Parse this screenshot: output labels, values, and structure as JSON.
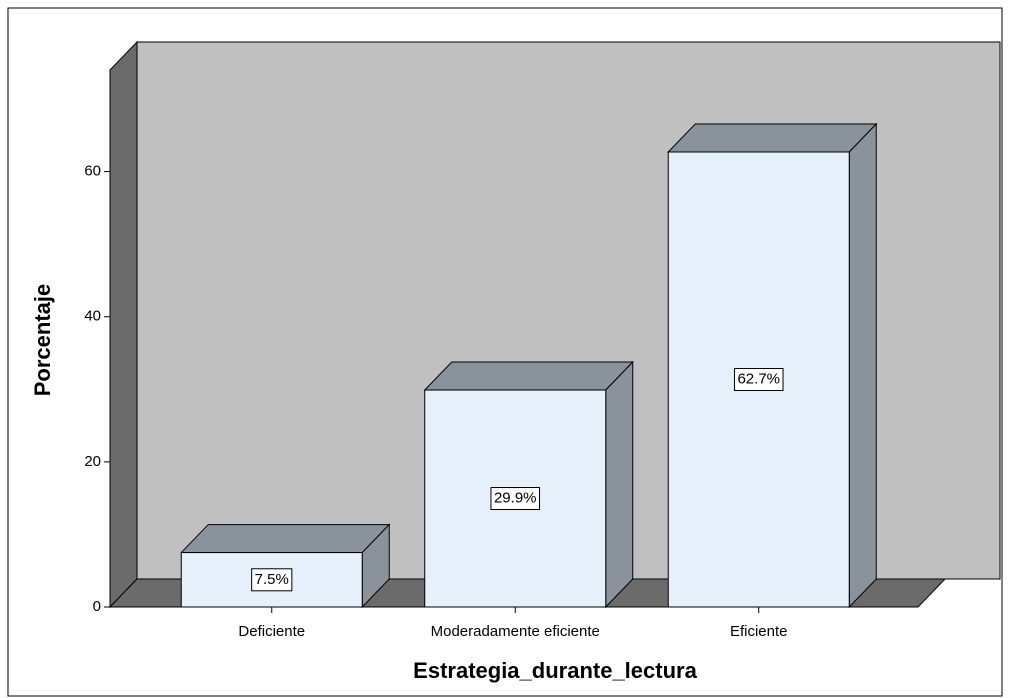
{
  "chart_data": {
    "type": "bar",
    "categories": [
      "Deficiente",
      "Moderadamente eficiente",
      "Eficiente"
    ],
    "values": [
      7.5,
      29.9,
      62.7
    ],
    "value_labels": [
      "7.5%",
      "29.9%",
      "62.7%"
    ],
    "color": "#e6f0fb",
    "x_label": "Estrategia_durante_lectura",
    "y_label": "Porcentaje",
    "ylim": [
      0,
      74
    ],
    "yticks": [
      0,
      20,
      40,
      60
    ]
  }
}
